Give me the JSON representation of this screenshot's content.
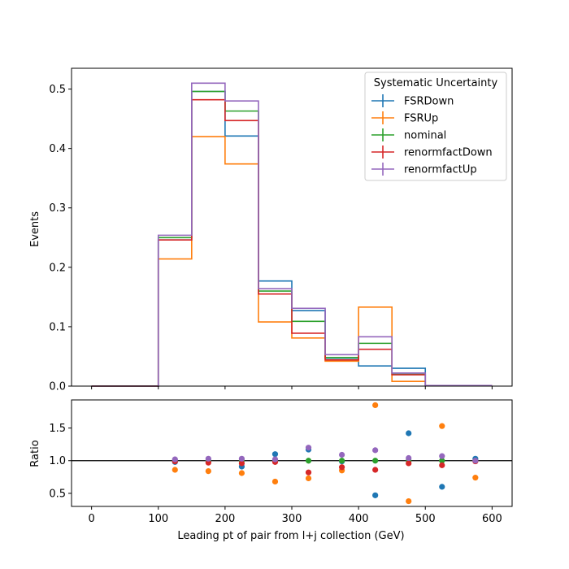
{
  "chart_data": [
    {
      "type": "line",
      "drawstyle": "steps",
      "xlabel": "",
      "ylabel": "Events",
      "xlim": [
        -30,
        630
      ],
      "ylim": [
        0,
        0.535
      ],
      "x_ticks": [
        0,
        100,
        200,
        300,
        400,
        500,
        600
      ],
      "y_ticks": [
        "0.0",
        "0.1",
        "0.2",
        "0.3",
        "0.4",
        "0.5"
      ],
      "bin_edges": [
        0,
        50,
        100,
        150,
        200,
        250,
        300,
        350,
        400,
        450,
        500,
        550,
        600
      ],
      "legend": {
        "title": "Systematic Uncertainty",
        "placement": "top-right"
      },
      "series": [
        {
          "name": "FSRDown",
          "color": "#1f77b4",
          "values": [
            0,
            0,
            0.246,
            0.496,
            0.421,
            0.177,
            0.127,
            0.047,
            0.034,
            0.03,
            0.001,
            0.001
          ]
        },
        {
          "name": "FSRUp",
          "color": "#ff7f0e",
          "values": [
            0,
            0,
            0.214,
            0.42,
            0.374,
            0.108,
            0.081,
            0.042,
            0.133,
            0.008,
            0.001,
            0.001
          ]
        },
        {
          "name": "nominal",
          "color": "#2ca02c",
          "values": [
            0,
            0,
            0.25,
            0.496,
            0.463,
            0.16,
            0.109,
            0.048,
            0.072,
            0.02,
            0.001,
            0.001
          ]
        },
        {
          "name": "renormfactDown",
          "color": "#d62728",
          "values": [
            0,
            0,
            0.246,
            0.482,
            0.447,
            0.155,
            0.089,
            0.044,
            0.062,
            0.019,
            0.001,
            0.001
          ]
        },
        {
          "name": "renormfactUp",
          "color": "#9467bd",
          "values": [
            0,
            0,
            0.254,
            0.51,
            0.48,
            0.164,
            0.131,
            0.053,
            0.083,
            0.022,
            0.001,
            0.001
          ]
        }
      ]
    },
    {
      "type": "scatter",
      "xlabel": "Leading pt of pair from l+j collection (GeV)",
      "ylabel": "Ratio",
      "xlim": [
        -30,
        630
      ],
      "ylim": [
        0.3,
        1.93
      ],
      "x_ticks": [
        0,
        100,
        200,
        300,
        400,
        500,
        600
      ],
      "y_ticks": [
        "0.5",
        "1.0",
        "1.5"
      ],
      "reference_line": 1.0,
      "x": [
        125,
        175,
        225,
        275,
        325,
        375,
        425,
        475,
        525,
        575
      ],
      "series": [
        {
          "name": "FSRDown",
          "color": "#1f77b4",
          "values": [
            0.98,
            1.0,
            0.91,
            1.1,
            1.17,
            0.99,
            0.47,
            1.42,
            0.6,
            1.03
          ]
        },
        {
          "name": "FSRUp",
          "color": "#ff7f0e",
          "values": [
            0.86,
            0.84,
            0.81,
            0.68,
            0.73,
            0.85,
            1.85,
            0.38,
            1.53,
            0.74
          ]
        },
        {
          "name": "nominal",
          "color": "#2ca02c",
          "values": [
            1.0,
            1.0,
            1.0,
            1.0,
            1.0,
            1.0,
            1.0,
            1.0,
            1.0,
            1.0
          ]
        },
        {
          "name": "renormfactDown",
          "color": "#d62728",
          "values": [
            0.99,
            0.97,
            0.96,
            0.98,
            0.82,
            0.9,
            0.86,
            0.96,
            0.93,
            0.99
          ]
        },
        {
          "name": "renormfactUp",
          "color": "#9467bd",
          "values": [
            1.02,
            1.03,
            1.03,
            1.02,
            1.2,
            1.09,
            1.16,
            1.04,
            1.07,
            1.0
          ]
        }
      ]
    }
  ]
}
